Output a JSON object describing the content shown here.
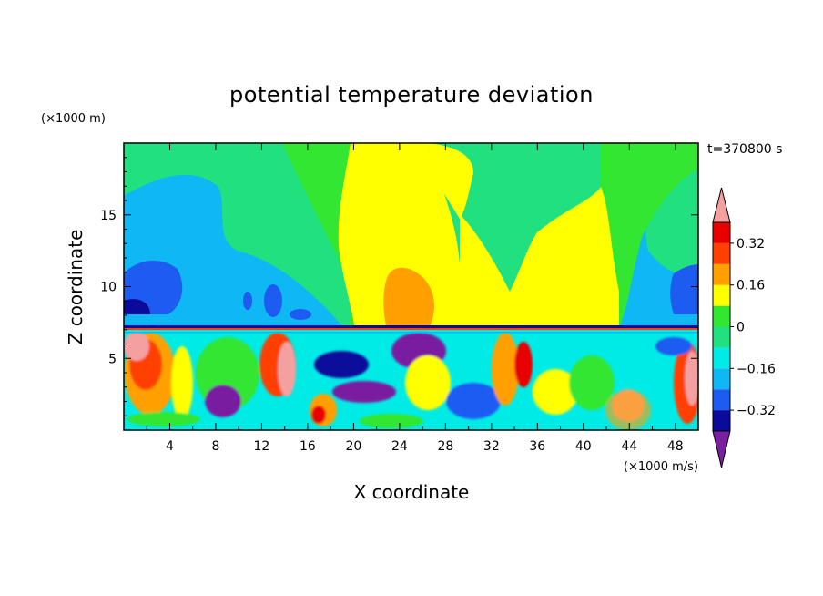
{
  "chart_data": {
    "type": "heatmap",
    "title": "potential temperature deviation",
    "xlabel": "X coordinate",
    "ylabel": "Z coordinate",
    "x_unit": "(×1000 m/s)",
    "y_unit": "(×1000 m)",
    "time_label": "t=370800 s",
    "xlim": [
      0,
      50
    ],
    "ylim": [
      0,
      20
    ],
    "x_ticks": [
      4,
      8,
      12,
      16,
      20,
      24,
      28,
      32,
      36,
      40,
      44,
      48
    ],
    "x_tick_labels": [
      "4",
      "8",
      "12",
      "16",
      "20",
      "24",
      "28",
      "32",
      "36",
      "40",
      "44",
      "48"
    ],
    "y_ticks": [
      5,
      10,
      15
    ],
    "y_tick_labels": [
      "5",
      "10",
      "15"
    ],
    "colorbar": {
      "levels": [
        -0.4,
        -0.32,
        -0.24,
        -0.16,
        -0.08,
        0,
        0.08,
        0.16,
        0.24,
        0.32,
        0.4
      ],
      "tick_values": [
        0.32,
        0.16,
        0,
        -0.16,
        -0.32
      ],
      "tick_labels": [
        "0.32",
        "0.16",
        "0",
        "−0.16",
        "−0.32"
      ],
      "colors": [
        "#7a1fa0",
        "#0a0a9b",
        "#1e5bf0",
        "#0fb8f5",
        "#00ebe6",
        "#20e080",
        "#32e632",
        "#ffff00",
        "#ffa000",
        "#ff4000",
        "#e80000",
        "#f5a0a0"
      ],
      "extend": "both"
    },
    "grid": false
  }
}
